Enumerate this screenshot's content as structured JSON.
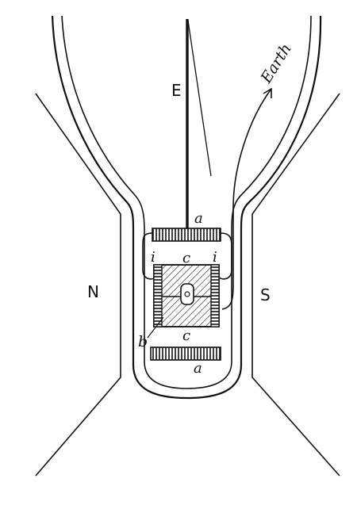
{
  "labels": {
    "pole_north": "N",
    "pole_south": "S",
    "electrode": "E",
    "earth": "Earth",
    "coil_top": "a",
    "coil_bottom": "a",
    "insulator_left": "i",
    "insulator_right": "i",
    "core_top": "c",
    "core_bottom": "c",
    "armature": "b"
  },
  "colors": {
    "ink": "#111111",
    "background": "#ffffff"
  }
}
